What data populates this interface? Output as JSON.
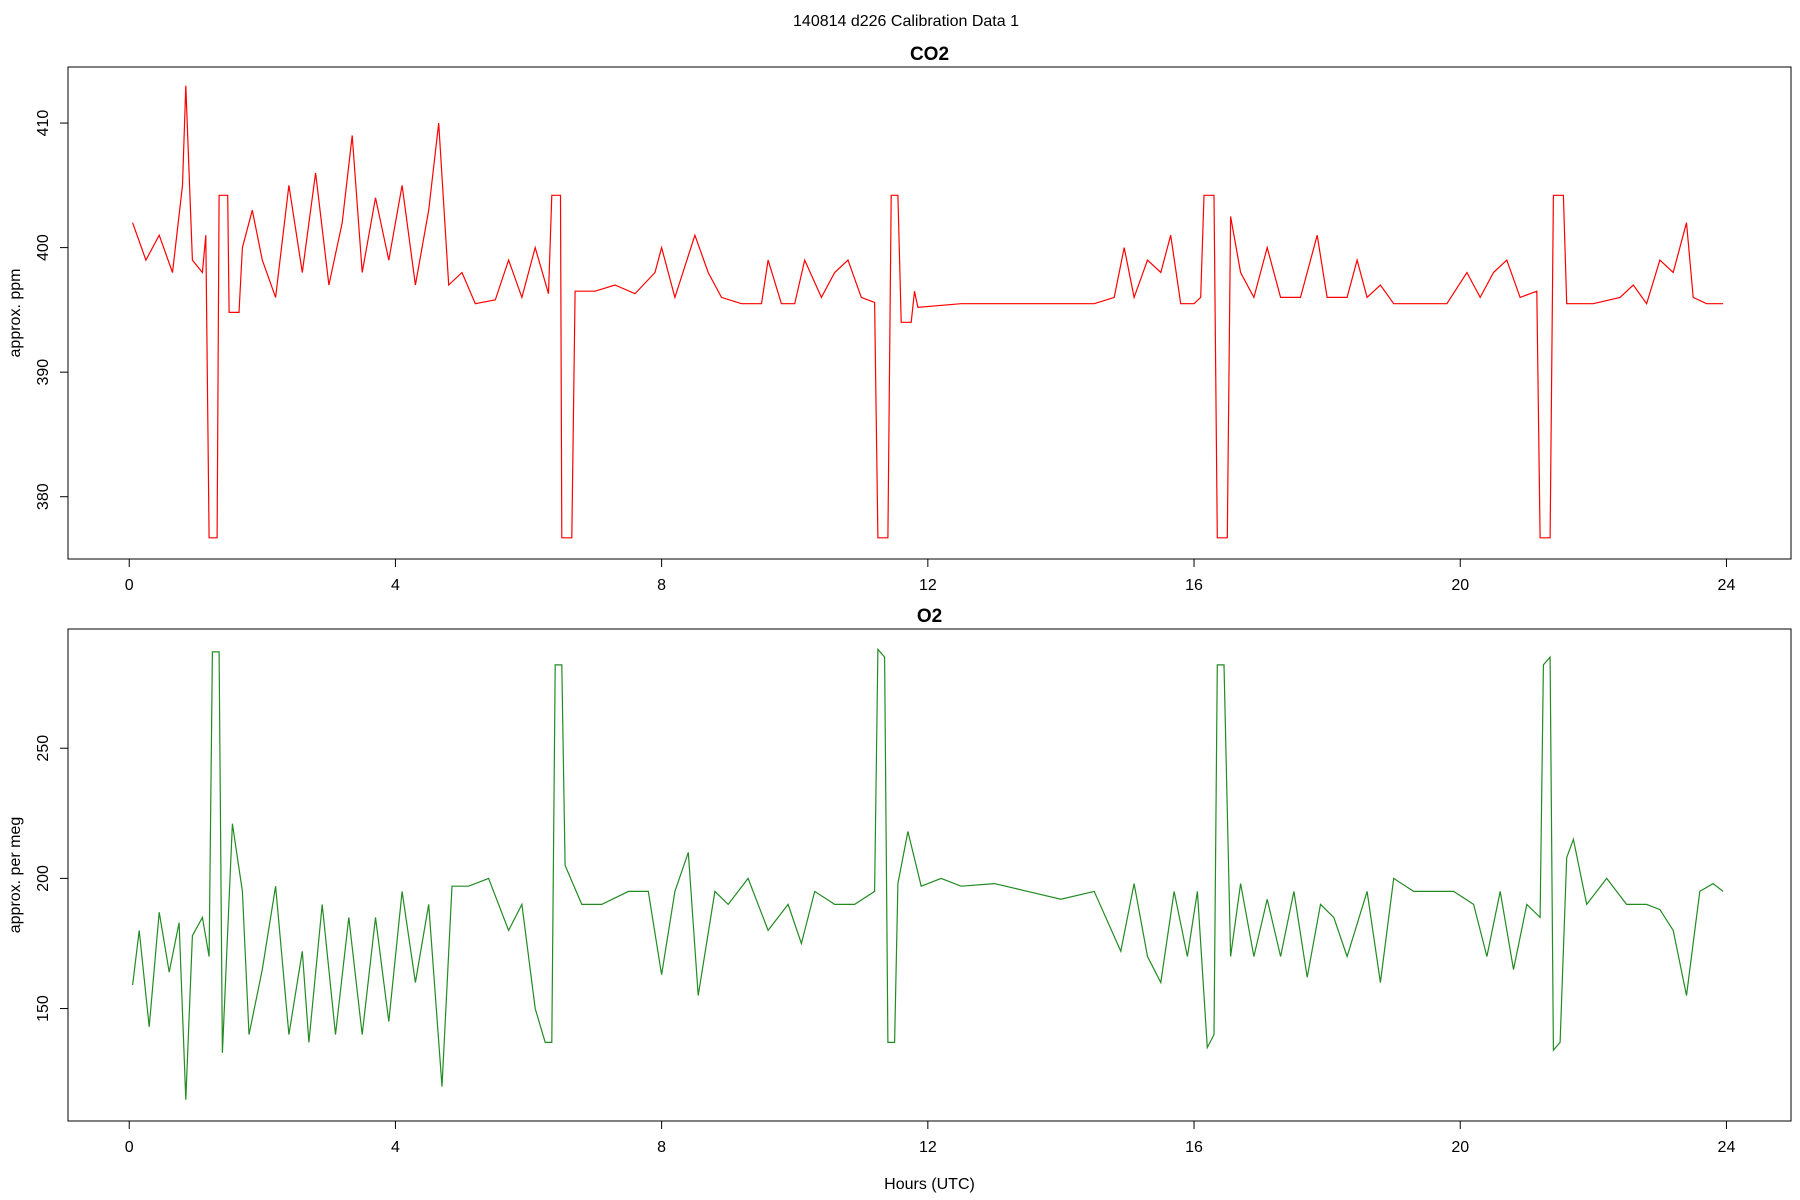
{
  "title": "140814   d226   Calibration Data 1",
  "chart_data": [
    {
      "type": "line",
      "title": "CO2",
      "ylabel": "approx. ppm",
      "color": "#ff0000",
      "xlim": [
        -0.92,
        24.97
      ],
      "xticks": [
        0,
        4,
        8,
        12,
        16,
        20,
        24
      ],
      "ylim": [
        375.0,
        414.5
      ],
      "yticks": [
        380,
        390,
        400,
        410
      ],
      "x": [
        0.05,
        0.25,
        0.45,
        0.65,
        0.8,
        0.85,
        0.95,
        1.1,
        1.15,
        1.2,
        1.32,
        1.35,
        1.48,
        1.5,
        1.65,
        1.7,
        1.85,
        2.0,
        2.2,
        2.4,
        2.6,
        2.8,
        3.0,
        3.2,
        3.35,
        3.5,
        3.7,
        3.9,
        4.1,
        4.3,
        4.5,
        4.65,
        4.8,
        5.0,
        5.2,
        5.5,
        5.7,
        5.9,
        6.1,
        6.3,
        6.35,
        6.48,
        6.5,
        6.65,
        6.7,
        7.0,
        7.3,
        7.6,
        7.9,
        8.0,
        8.2,
        8.5,
        8.7,
        8.9,
        9.2,
        9.5,
        9.6,
        9.8,
        10.0,
        10.15,
        10.4,
        10.6,
        10.8,
        11.0,
        11.2,
        11.25,
        11.4,
        11.45,
        11.55,
        11.6,
        11.75,
        11.8,
        11.85,
        12.5,
        13.5,
        14.5,
        14.8,
        14.95,
        15.1,
        15.3,
        15.5,
        15.65,
        15.8,
        16.0,
        16.1,
        16.15,
        16.3,
        16.35,
        16.5,
        16.55,
        16.7,
        16.9,
        17.1,
        17.3,
        17.6,
        17.85,
        18.0,
        18.3,
        18.45,
        18.6,
        18.8,
        19.0,
        19.5,
        19.8,
        20.1,
        20.3,
        20.5,
        20.7,
        20.9,
        21.15,
        21.2,
        21.35,
        21.4,
        21.55,
        21.6,
        22.0,
        22.4,
        22.6,
        22.8,
        23.0,
        23.2,
        23.4,
        23.5,
        23.7,
        23.95
      ],
      "values": [
        402,
        399,
        401,
        398,
        405,
        413,
        399,
        398,
        401,
        376.7,
        376.7,
        404.2,
        404.2,
        394.8,
        394.8,
        400,
        403,
        399,
        396,
        405,
        398,
        406,
        397,
        402,
        409,
        398,
        404,
        399,
        405,
        397,
        403,
        410,
        397,
        398,
        395.5,
        395.8,
        399,
        396,
        400,
        396.3,
        404.2,
        404.2,
        376.7,
        376.7,
        396.5,
        396.5,
        397,
        396.3,
        398,
        400,
        396,
        401,
        398,
        396,
        395.5,
        395.5,
        399,
        395.5,
        395.5,
        399,
        396,
        398,
        399,
        396,
        395.6,
        376.7,
        376.7,
        404.2,
        404.2,
        394,
        394,
        396.5,
        395.2,
        395.5,
        395.5,
        395.5,
        396,
        400,
        396,
        399,
        398,
        401,
        395.5,
        395.5,
        396,
        404.2,
        404.2,
        376.7,
        376.7,
        402.5,
        398,
        396,
        400,
        396,
        396,
        401,
        396,
        396,
        399,
        396,
        397,
        395.5,
        395.5,
        395.5,
        398,
        396,
        398,
        399,
        396,
        396.5,
        376.7,
        376.7,
        404.2,
        404.2,
        395.5,
        395.5,
        396,
        397,
        395.5,
        399,
        398,
        402,
        396,
        395.5,
        395.5
      ]
    },
    {
      "type": "line",
      "title": "O2",
      "ylabel": "approx. per meg",
      "xlabel": "Hours (UTC)",
      "color": "#228b22",
      "xlim": [
        -0.92,
        24.97
      ],
      "xticks": [
        0,
        4,
        8,
        12,
        16,
        20,
        24
      ],
      "ylim": [
        106.8,
        295.8
      ],
      "yticks": [
        150,
        200,
        250
      ],
      "x": [
        0.05,
        0.15,
        0.3,
        0.45,
        0.6,
        0.75,
        0.85,
        0.95,
        1.1,
        1.2,
        1.25,
        1.35,
        1.4,
        1.55,
        1.7,
        1.8,
        2.0,
        2.2,
        2.4,
        2.6,
        2.7,
        2.9,
        3.1,
        3.3,
        3.5,
        3.7,
        3.9,
        4.1,
        4.3,
        4.5,
        4.7,
        4.85,
        5.1,
        5.4,
        5.7,
        5.9,
        6.1,
        6.25,
        6.35,
        6.4,
        6.5,
        6.55,
        6.8,
        7.1,
        7.5,
        7.8,
        8.0,
        8.2,
        8.4,
        8.55,
        8.8,
        9.0,
        9.3,
        9.6,
        9.9,
        10.1,
        10.3,
        10.6,
        10.9,
        11.2,
        11.25,
        11.35,
        11.4,
        11.5,
        11.55,
        11.7,
        11.9,
        12.2,
        12.5,
        13.0,
        13.5,
        14.0,
        14.5,
        14.9,
        15.1,
        15.3,
        15.5,
        15.7,
        15.9,
        16.05,
        16.2,
        16.3,
        16.35,
        16.45,
        16.55,
        16.7,
        16.9,
        17.1,
        17.3,
        17.5,
        17.7,
        17.9,
        18.1,
        18.3,
        18.6,
        18.8,
        19.0,
        19.3,
        19.6,
        19.9,
        20.2,
        20.4,
        20.6,
        20.8,
        21.0,
        21.2,
        21.25,
        21.35,
        21.4,
        21.5,
        21.6,
        21.7,
        21.9,
        22.2,
        22.5,
        22.8,
        23.0,
        23.2,
        23.4,
        23.6,
        23.8,
        23.95
      ],
      "values": [
        159,
        180,
        143,
        187,
        164,
        183,
        115,
        178,
        185,
        170,
        287,
        287,
        133,
        221,
        195,
        140,
        165,
        197,
        140,
        172,
        137,
        190,
        140,
        185,
        140,
        185,
        145,
        195,
        160,
        190,
        120,
        197,
        197,
        200,
        180,
        190,
        150,
        137,
        137,
        282,
        282,
        205,
        190,
        190,
        195,
        195,
        163,
        195,
        210,
        155,
        195,
        190,
        200,
        180,
        190,
        175,
        195,
        190,
        190,
        195,
        288,
        285,
        137,
        137,
        198,
        218,
        197,
        200,
        197,
        198,
        195,
        192,
        195,
        172,
        198,
        170,
        160,
        195,
        170,
        195,
        135,
        140,
        282,
        282,
        170,
        198,
        170,
        192,
        170,
        195,
        162,
        190,
        185,
        170,
        195,
        160,
        200,
        195,
        195,
        195,
        190,
        170,
        195,
        165,
        190,
        185,
        282,
        285,
        134,
        137,
        208,
        215,
        190,
        200,
        190,
        190,
        188,
        180,
        155,
        195,
        198,
        195
      ]
    }
  ]
}
